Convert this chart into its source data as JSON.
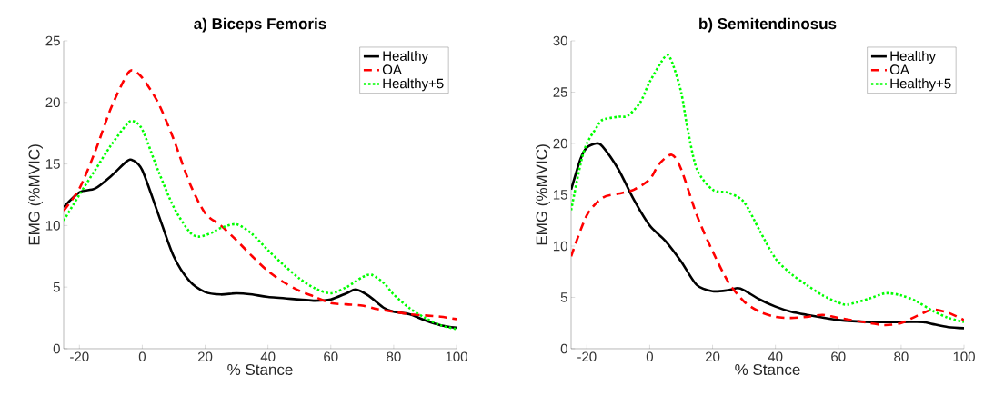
{
  "chart_data": [
    {
      "type": "line",
      "title": "a) Biceps Femoris",
      "xlabel": "% Stance",
      "ylabel": "EMG (%MVIC)",
      "xlim": [
        -25,
        100
      ],
      "ylim": [
        0,
        25
      ],
      "xticks": [
        -20,
        0,
        20,
        40,
        60,
        80,
        100
      ],
      "yticks": [
        0,
        5,
        10,
        15,
        20,
        25
      ],
      "grid": false,
      "legend": "top right",
      "marker": "none",
      "series": [
        {
          "name": "Healthy",
          "color": "#000000",
          "line_style": "solid",
          "x": [
            -25,
            -20,
            -15,
            -10,
            -5,
            -3,
            0,
            5,
            10,
            15,
            20,
            25,
            30,
            35,
            40,
            50,
            55,
            60,
            65,
            68,
            72,
            77,
            80,
            85,
            90,
            95,
            100
          ],
          "values": [
            11.5,
            12.7,
            13,
            14,
            15.2,
            15.3,
            14.5,
            11,
            7.5,
            5.5,
            4.6,
            4.4,
            4.5,
            4.4,
            4.2,
            4.0,
            3.9,
            4.0,
            4.5,
            4.8,
            4.3,
            3.3,
            3.0,
            2.8,
            2.3,
            1.9,
            1.7
          ]
        },
        {
          "name": "OA",
          "color": "#ff0000",
          "line_style": "dashed",
          "x": [
            -25,
            -20,
            -15,
            -10,
            -5,
            -3,
            0,
            5,
            10,
            15,
            20,
            25,
            30,
            35,
            40,
            45,
            50,
            55,
            60,
            65,
            70,
            75,
            80,
            85,
            90,
            95,
            100
          ],
          "values": [
            11.2,
            13,
            16,
            19.5,
            22.2,
            22.6,
            22,
            20,
            17,
            13.5,
            11,
            10,
            8.8,
            7.5,
            6.3,
            5.4,
            4.7,
            4.2,
            3.7,
            3.6,
            3.5,
            3.2,
            3.0,
            2.8,
            2.7,
            2.6,
            2.4
          ]
        },
        {
          "name": "Healthy+5",
          "color": "#00ff00",
          "line_style": "dotted",
          "x": [
            -25,
            -20,
            -15,
            -10,
            -5,
            -3,
            0,
            5,
            10,
            15,
            18,
            22,
            25,
            30,
            35,
            40,
            45,
            50,
            55,
            60,
            65,
            70,
            73,
            77,
            80,
            85,
            90,
            95,
            100
          ],
          "values": [
            10.4,
            12.5,
            14.5,
            16.5,
            18.2,
            18.5,
            17.8,
            14.5,
            11.5,
            9.5,
            9.1,
            9.4,
            9.8,
            10.1,
            9.3,
            8,
            6.8,
            5.7,
            4.9,
            4.5,
            5,
            5.8,
            6,
            5.3,
            4.4,
            3.3,
            2.5,
            1.9,
            1.6
          ]
        }
      ]
    },
    {
      "type": "line",
      "title": "b) Semitendinosus",
      "xlabel": "% Stance",
      "ylabel": "EMG (%MVIC)",
      "xlim": [
        -25,
        100
      ],
      "ylim": [
        0,
        30
      ],
      "xticks": [
        -20,
        0,
        20,
        40,
        60,
        80,
        100
      ],
      "yticks": [
        0,
        5,
        10,
        15,
        20,
        25,
        30
      ],
      "grid": false,
      "legend": "top right",
      "marker": "none",
      "series": [
        {
          "name": "Healthy",
          "color": "#000000",
          "line_style": "solid",
          "x": [
            -25,
            -22,
            -20,
            -17,
            -15,
            -10,
            -5,
            0,
            5,
            10,
            15,
            20,
            25,
            28,
            30,
            35,
            40,
            45,
            50,
            60,
            70,
            80,
            87,
            90,
            95,
            100
          ],
          "values": [
            15.5,
            18.5,
            19.6,
            20,
            19.7,
            17.5,
            14.5,
            12,
            10.5,
            8.5,
            6.2,
            5.6,
            5.7,
            5.9,
            5.7,
            4.8,
            4.1,
            3.6,
            3.3,
            2.8,
            2.6,
            2.6,
            2.6,
            2.4,
            2.1,
            2.0
          ]
        },
        {
          "name": "OA",
          "color": "#ff0000",
          "line_style": "dashed",
          "x": [
            -25,
            -20,
            -15,
            -10,
            -5,
            0,
            3,
            7,
            10,
            15,
            20,
            25,
            30,
            35,
            40,
            45,
            50,
            55,
            60,
            70,
            75,
            80,
            85,
            90,
            95,
            100
          ],
          "values": [
            9,
            13,
            14.7,
            15.1,
            15.5,
            16.5,
            18,
            18.9,
            17.5,
            13,
            9.5,
            6.5,
            4.6,
            3.6,
            3.1,
            3.0,
            3.1,
            3.3,
            3.0,
            2.5,
            2.3,
            2.5,
            3.2,
            3.8,
            3.5,
            2.8
          ]
        },
        {
          "name": "Healthy+5",
          "color": "#00ff00",
          "line_style": "dotted",
          "x": [
            -25,
            -22,
            -20,
            -17,
            -15,
            -10,
            -7,
            -3,
            0,
            5,
            7,
            10,
            12,
            15,
            20,
            25,
            30,
            35,
            40,
            45,
            50,
            55,
            60,
            63,
            70,
            75,
            80,
            85,
            90,
            95,
            100
          ],
          "values": [
            13.5,
            18,
            20,
            21.5,
            22.3,
            22.6,
            22.7,
            24,
            26,
            28.5,
            28,
            25,
            21.5,
            17.5,
            15.5,
            15.2,
            14.3,
            11.5,
            8.8,
            7.3,
            6.2,
            5.2,
            4.5,
            4.3,
            4.9,
            5.4,
            5.2,
            4.6,
            3.7,
            3.0,
            2.6
          ]
        }
      ]
    }
  ]
}
